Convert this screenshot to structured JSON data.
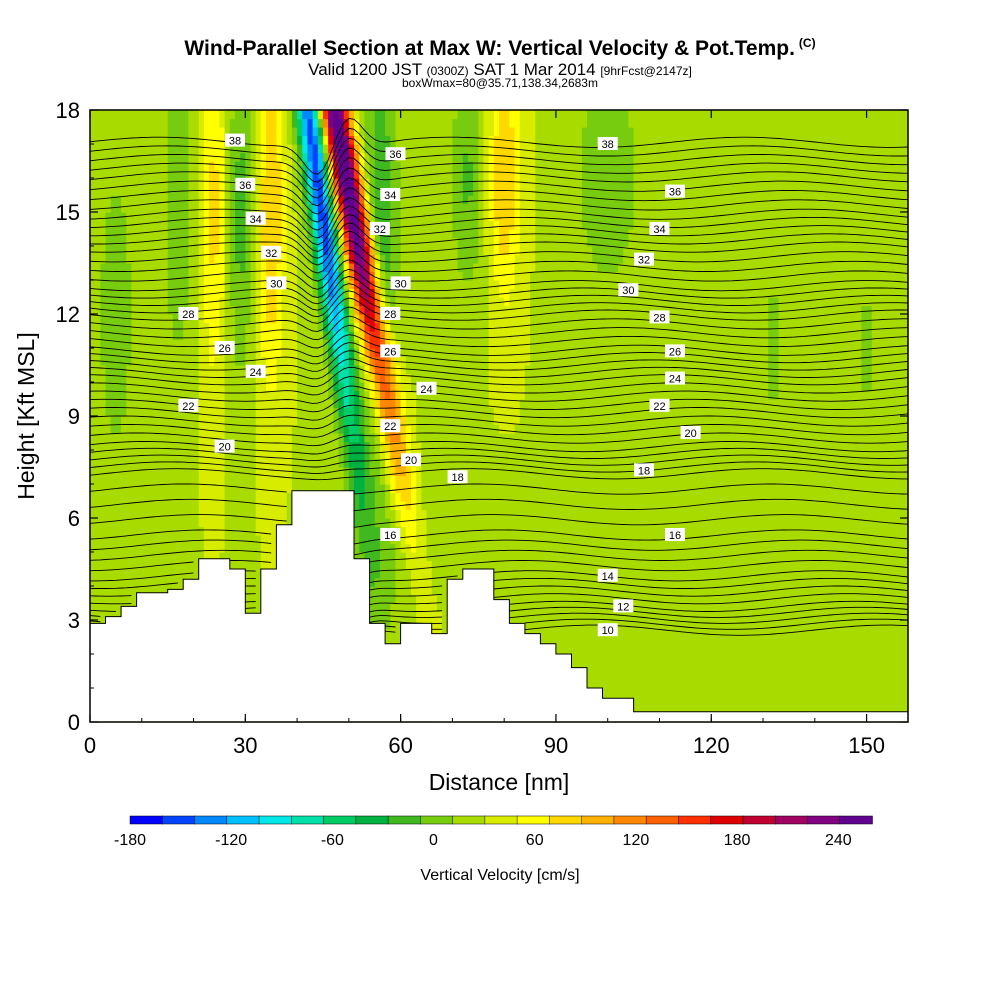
{
  "header": {
    "title": "Wind-Parallel Section at Max W: Vertical Velocity & Pot.Temp.",
    "copyright": "(C)",
    "subtitle_main": "Valid 1200 JST",
    "subtitle_utc": "(0300Z)",
    "subtitle_date": "SAT 1 Mar 2014",
    "subtitle_fcst": "[9hrFcst@2147z]",
    "info": "boxWmax=80@35.71,138.34,2683m"
  },
  "chart_data": {
    "type": "heatmap",
    "xlabel": "Distance [nm]",
    "ylabel": "Height [Kft MSL]",
    "xlim": [
      0,
      158
    ],
    "ylim": [
      0,
      18
    ],
    "xticks": [
      "0",
      "30",
      "60",
      "90",
      "120",
      "150"
    ],
    "yticks": [
      "0",
      "3",
      "6",
      "9",
      "12",
      "15",
      "18"
    ],
    "colorbar": {
      "label": "Vertical Velocity [cm/s]",
      "tick_labels": [
        "-180",
        "-120",
        "-60",
        "0",
        "60",
        "120",
        "180",
        "240"
      ],
      "tick_values": [
        -180,
        -120,
        -60,
        0,
        60,
        120,
        180,
        240
      ],
      "range": [
        -180,
        260
      ],
      "colors": [
        "#0000ff",
        "#0044ff",
        "#0088ff",
        "#00c0ff",
        "#00e8e8",
        "#00e0a8",
        "#00cc66",
        "#00b040",
        "#40b820",
        "#78cc10",
        "#a8dc00",
        "#d8ec00",
        "#ffff00",
        "#ffd800",
        "#ffb000",
        "#ff8800",
        "#ff6000",
        "#ff3000",
        "#e00000",
        "#c00030",
        "#a00060",
        "#800080",
        "#600090"
      ]
    },
    "theta_contour_labels": [
      {
        "value": 10,
        "x": 100,
        "y": 2.7
      },
      {
        "value": 12,
        "x": 103,
        "y": 3.4
      },
      {
        "value": 14,
        "x": 100,
        "y": 4.3
      },
      {
        "value": 16,
        "x": 58,
        "y": 5.5
      },
      {
        "value": 16,
        "x": 113,
        "y": 5.5
      },
      {
        "value": 18,
        "x": 71,
        "y": 7.2
      },
      {
        "value": 18,
        "x": 107,
        "y": 7.4
      },
      {
        "value": 20,
        "x": 26,
        "y": 8.1
      },
      {
        "value": 20,
        "x": 62,
        "y": 7.7
      },
      {
        "value": 20,
        "x": 116,
        "y": 8.5
      },
      {
        "value": 22,
        "x": 19,
        "y": 9.3
      },
      {
        "value": 22,
        "x": 58,
        "y": 8.7
      },
      {
        "value": 22,
        "x": 110,
        "y": 9.3
      },
      {
        "value": 24,
        "x": 32,
        "y": 10.3
      },
      {
        "value": 24,
        "x": 65,
        "y": 9.8
      },
      {
        "value": 24,
        "x": 113,
        "y": 10.1
      },
      {
        "value": 26,
        "x": 26,
        "y": 11.0
      },
      {
        "value": 26,
        "x": 58,
        "y": 10.9
      },
      {
        "value": 26,
        "x": 113,
        "y": 10.9
      },
      {
        "value": 28,
        "x": 19,
        "y": 12.0
      },
      {
        "value": 28,
        "x": 58,
        "y": 12.0
      },
      {
        "value": 28,
        "x": 110,
        "y": 11.9
      },
      {
        "value": 30,
        "x": 36,
        "y": 12.9
      },
      {
        "value": 30,
        "x": 60,
        "y": 12.9
      },
      {
        "value": 30,
        "x": 104,
        "y": 12.7
      },
      {
        "value": 32,
        "x": 35,
        "y": 13.8
      },
      {
        "value": 32,
        "x": 56,
        "y": 14.5
      },
      {
        "value": 32,
        "x": 107,
        "y": 13.6
      },
      {
        "value": 34,
        "x": 32,
        "y": 14.8
      },
      {
        "value": 34,
        "x": 58,
        "y": 15.5
      },
      {
        "value": 34,
        "x": 110,
        "y": 14.5
      },
      {
        "value": 36,
        "x": 30,
        "y": 15.8
      },
      {
        "value": 36,
        "x": 59,
        "y": 16.7
      },
      {
        "value": 36,
        "x": 113,
        "y": 15.6
      },
      {
        "value": 38,
        "x": 28,
        "y": 17.1
      },
      {
        "value": 38,
        "x": 100,
        "y": 17.0
      }
    ],
    "terrain": {
      "x": [
        0,
        3,
        6,
        9,
        12,
        15,
        18,
        21,
        24,
        27,
        30,
        33,
        36,
        39,
        42,
        45,
        48,
        51,
        54,
        57,
        60,
        63,
        66,
        69,
        72,
        75,
        78,
        81,
        84,
        87,
        90,
        93,
        96,
        99,
        102,
        105,
        108,
        111,
        114,
        117,
        120,
        123,
        126,
        129,
        132,
        135,
        138,
        141,
        144,
        147,
        150,
        153,
        156,
        158
      ],
      "height": [
        2.9,
        3.1,
        3.4,
        3.8,
        3.8,
        3.9,
        4.2,
        4.8,
        4.8,
        4.5,
        3.2,
        4.5,
        5.8,
        6.8,
        6.8,
        6.8,
        6.8,
        4.8,
        2.9,
        2.3,
        2.9,
        2.9,
        2.6,
        4.2,
        4.5,
        4.5,
        3.6,
        2.9,
        2.6,
        2.3,
        2.0,
        1.6,
        1.0,
        0.7,
        0.7,
        0.3,
        0.3,
        0.3,
        0.3,
        0.3,
        0.3,
        0.3,
        0.3,
        0.3,
        0.3,
        0.3,
        0.3,
        0.3,
        0.3,
        0.3,
        0.3,
        0.3,
        0.3,
        0.3
      ]
    },
    "background_field": {
      "base": 30,
      "features": [
        {
          "x": 44,
          "y": 16,
          "wx": 2.5,
          "wy": 8,
          "amp": -190,
          "tilt": -0.22
        },
        {
          "x": 49.5,
          "y": 16,
          "wx": 2.8,
          "wy": 8,
          "amp": 250,
          "tilt": -0.3
        },
        {
          "x": 56,
          "y": 14,
          "wx": 3.5,
          "wy": 6,
          "amp": -60,
          "tilt": 0.0
        },
        {
          "x": 35,
          "y": 15,
          "wx": 2.5,
          "wy": 5,
          "amp": 60,
          "tilt": 0.0
        },
        {
          "x": 29,
          "y": 15,
          "wx": 2.5,
          "wy": 5,
          "amp": -45,
          "tilt": 0.0
        },
        {
          "x": 24,
          "y": 15,
          "wx": 2.5,
          "wy": 5,
          "amp": 45,
          "tilt": 0.0
        },
        {
          "x": 17,
          "y": 15,
          "wx": 3.0,
          "wy": 5,
          "amp": -35,
          "tilt": 0.0
        },
        {
          "x": 80,
          "y": 16,
          "wx": 3.0,
          "wy": 3.5,
          "amp": 60,
          "tilt": 0.0
        },
        {
          "x": 73,
          "y": 16,
          "wx": 3.5,
          "wy": 3.5,
          "amp": -40,
          "tilt": 0.0
        },
        {
          "x": 100,
          "y": 16,
          "wx": 8.0,
          "wy": 4,
          "amp": -30,
          "tilt": 0.0
        },
        {
          "x": 5,
          "y": 12,
          "wx": 4.0,
          "wy": 5,
          "amp": -30,
          "tilt": 0.0
        },
        {
          "x": 132,
          "y": 11,
          "wx": 5.0,
          "wy": 6,
          "amp": -20,
          "tilt": 0.0
        },
        {
          "x": 150,
          "y": 11,
          "wx": 4.0,
          "wy": 6,
          "amp": -20,
          "tilt": 0.0
        },
        {
          "x": 60,
          "y": 5,
          "wx": 10.0,
          "wy": 3,
          "amp": -20,
          "tilt": 0.0
        }
      ]
    }
  }
}
